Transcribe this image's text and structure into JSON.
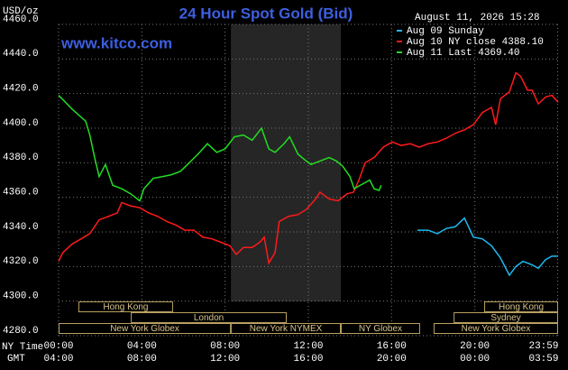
{
  "chart_data": {
    "type": "line",
    "title": "24 Hour Spot Gold (Bid)",
    "source": "www.kitco.com",
    "timestamp": "August 11, 2026 15:28",
    "y_label": "USD/oz",
    "x_label": "NY Time",
    "x2_label": "GMT",
    "background": "#000000",
    "grid": true,
    "legend": "top-right",
    "xlim": [
      0,
      24
    ],
    "xticks": [
      {
        "value": 0,
        "label": "00:00"
      },
      {
        "value": 4,
        "label": "04:00"
      },
      {
        "value": 8,
        "label": "08:00"
      },
      {
        "value": 12,
        "label": "12:00"
      },
      {
        "value": 16,
        "label": "16:00"
      },
      {
        "value": 20,
        "label": "20:00"
      },
      {
        "value": 23.98,
        "label": "23:59"
      }
    ],
    "x2ticks": [
      "04:00",
      "08:00",
      "12:00",
      "16:00",
      "20:00",
      "00:00",
      "03:59"
    ],
    "ylim": [
      4280,
      4460
    ],
    "yticks": [
      {
        "value": 4280,
        "label": "4280.0"
      },
      {
        "value": 4300,
        "label": "4300.0"
      },
      {
        "value": 4320,
        "label": "4320.0"
      },
      {
        "value": 4340,
        "label": "4340.0"
      },
      {
        "value": 4360,
        "label": "4360.0"
      },
      {
        "value": 4380,
        "label": "4380.0"
      },
      {
        "value": 4400,
        "label": "4400.0"
      },
      {
        "value": 4420,
        "label": "4420.0"
      },
      {
        "value": 4440,
        "label": "4440.0"
      },
      {
        "value": 4460,
        "label": "4460.0"
      }
    ],
    "series": [
      {
        "name": "Aug 09 Sunday",
        "color": "#1eb8f0",
        "x": [
          17.24,
          17.76,
          18.2,
          18.63,
          19.06,
          19.5,
          19.93,
          20.36,
          20.8,
          21.23,
          21.66,
          21.97,
          22.31,
          22.75,
          23.05,
          23.4,
          23.7,
          24
        ],
        "values": [
          4341,
          4341,
          4339,
          4342,
          4343,
          4348,
          4337,
          4336,
          4332,
          4325,
          4315,
          4320,
          4323,
          4321,
          4319,
          4324,
          4326,
          4326
        ]
      },
      {
        "name": "Aug 10 NY close 4388.10",
        "color": "#ff1a1a",
        "x": [
          0,
          0.2,
          0.65,
          1.08,
          1.5,
          1.95,
          2.4,
          2.82,
          3.03,
          3.47,
          3.9,
          4.33,
          4.77,
          5.2,
          5.63,
          6.07,
          6.5,
          6.93,
          7.37,
          7.8,
          8.23,
          8.54,
          8.88,
          9.3,
          9.66,
          9.88,
          10.1,
          10.4,
          10.6,
          11.05,
          11.5,
          11.9,
          12.35,
          12.56,
          13.0,
          13.43,
          13.86,
          14.17,
          14.43,
          14.73,
          15.16,
          15.6,
          16.03,
          16.46,
          16.9,
          17.33,
          17.76,
          18.2,
          18.6,
          19.06,
          19.5,
          19.93,
          20.36,
          20.8,
          21.0,
          21.23,
          21.66,
          21.97,
          22.2,
          22.53,
          22.75,
          23.05,
          23.4,
          23.7,
          24
        ],
        "values": [
          4323,
          4328,
          4333,
          4336,
          4339,
          4347,
          4349,
          4351,
          4357,
          4355,
          4354,
          4351,
          4349,
          4346,
          4344,
          4341,
          4341,
          4337,
          4336,
          4334,
          4332,
          4327,
          4331,
          4331,
          4334,
          4337,
          4322,
          4328,
          4346,
          4349,
          4350,
          4353,
          4359,
          4363,
          4359,
          4358,
          4362,
          4363,
          4370,
          4380,
          4383,
          4389,
          4392,
          4390,
          4391,
          4389,
          4391,
          4392,
          4394,
          4397,
          4399,
          4402,
          4409,
          4412,
          4402,
          4417,
          4421,
          4432,
          4430,
          4422,
          4422,
          4414,
          4418,
          4419,
          4415
        ]
      },
      {
        "name": "Aug 11 Last 4369.40",
        "color": "#22dd22",
        "x": [
          0,
          0.65,
          1.3,
          1.5,
          1.73,
          1.95,
          2.25,
          2.6,
          3.03,
          3.47,
          3.9,
          4.1,
          4.55,
          5.0,
          5.4,
          5.85,
          6.28,
          6.7,
          7.15,
          7.6,
          8.0,
          8.45,
          8.88,
          9.3,
          9.75,
          10.1,
          10.4,
          10.83,
          11.1,
          11.5,
          11.9,
          12.13,
          12.56,
          13.0,
          13.35,
          13.65,
          14.0,
          14.2,
          14.5,
          14.95,
          15.16,
          15.4,
          15.5
        ],
        "values": [
          4419,
          4411,
          4404,
          4396,
          4383,
          4372,
          4379,
          4367,
          4365,
          4362,
          4358,
          4365,
          4371,
          4372,
          4373,
          4375,
          4380,
          4385,
          4391,
          4386,
          4388,
          4395,
          4396,
          4393,
          4400,
          4388,
          4386,
          4391,
          4395,
          4385,
          4381,
          4379,
          4381,
          4383,
          4381,
          4378,
          4372,
          4365,
          4367,
          4370,
          4365,
          4364,
          4367
        ]
      }
    ],
    "sessions": [
      {
        "label": "Hong Kong",
        "start": 0.95,
        "end": 5.5,
        "row": 1
      },
      {
        "label": "London",
        "start": 3.47,
        "end": 10.96,
        "row": 2
      },
      {
        "label": "New York Globex",
        "start": 0,
        "end": 8.28,
        "row": 3
      },
      {
        "label": "New York NYMEX",
        "start": 8.28,
        "end": 13.56,
        "row": 3,
        "shaded": true
      },
      {
        "label": "NY Globex",
        "start": 13.56,
        "end": 17.37,
        "row": 3
      },
      {
        "label": "Hong Kong",
        "start": 20.45,
        "end": 24,
        "row": 1
      },
      {
        "label": "Sydney",
        "start": 18.98,
        "end": 24,
        "row": 2
      },
      {
        "label": "New York Globex",
        "start": 18.02,
        "end": 24,
        "row": 3
      }
    ]
  }
}
